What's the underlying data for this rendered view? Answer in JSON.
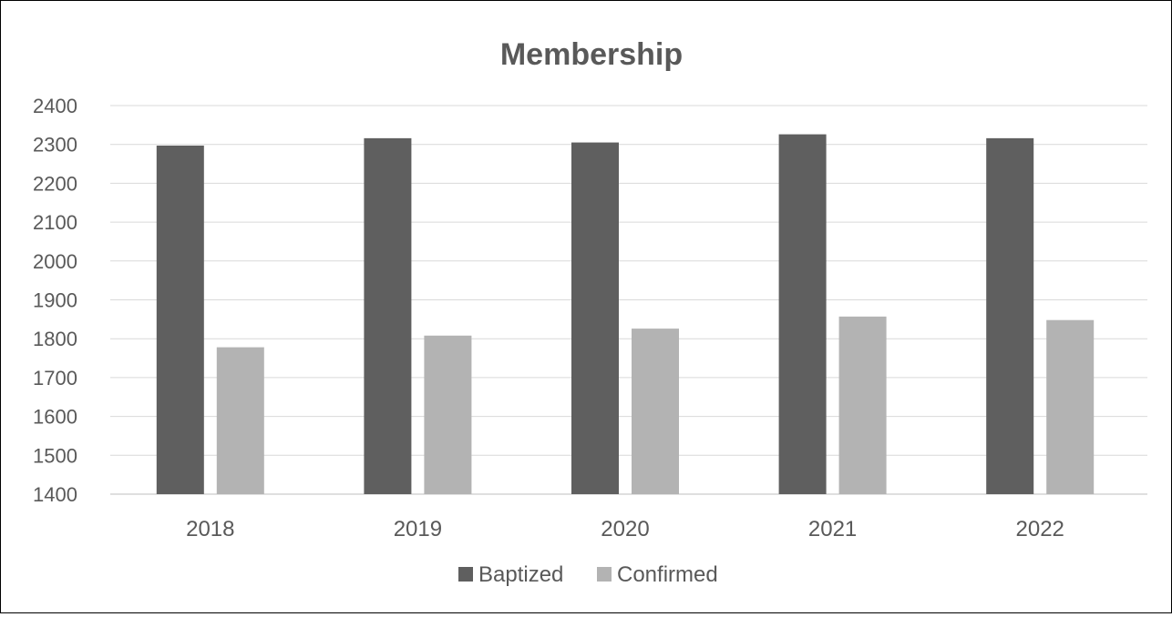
{
  "chart_data": {
    "type": "bar",
    "title": "Membership",
    "xlabel": "",
    "ylabel": "",
    "categories": [
      "2018",
      "2019",
      "2020",
      "2021",
      "2022"
    ],
    "series": [
      {
        "name": "Baptized",
        "color": "#5f5f5f",
        "values": [
          2297,
          2316,
          2305,
          2326,
          2316
        ]
      },
      {
        "name": "Confirmed",
        "color": "#b3b3b3",
        "values": [
          1778,
          1808,
          1826,
          1857,
          1848
        ]
      }
    ],
    "ylim": [
      1400,
      2400
    ],
    "yticks": [
      1400,
      1500,
      1600,
      1700,
      1800,
      1900,
      2000,
      2100,
      2200,
      2300,
      2400
    ],
    "grid": true,
    "legend_position": "bottom"
  }
}
